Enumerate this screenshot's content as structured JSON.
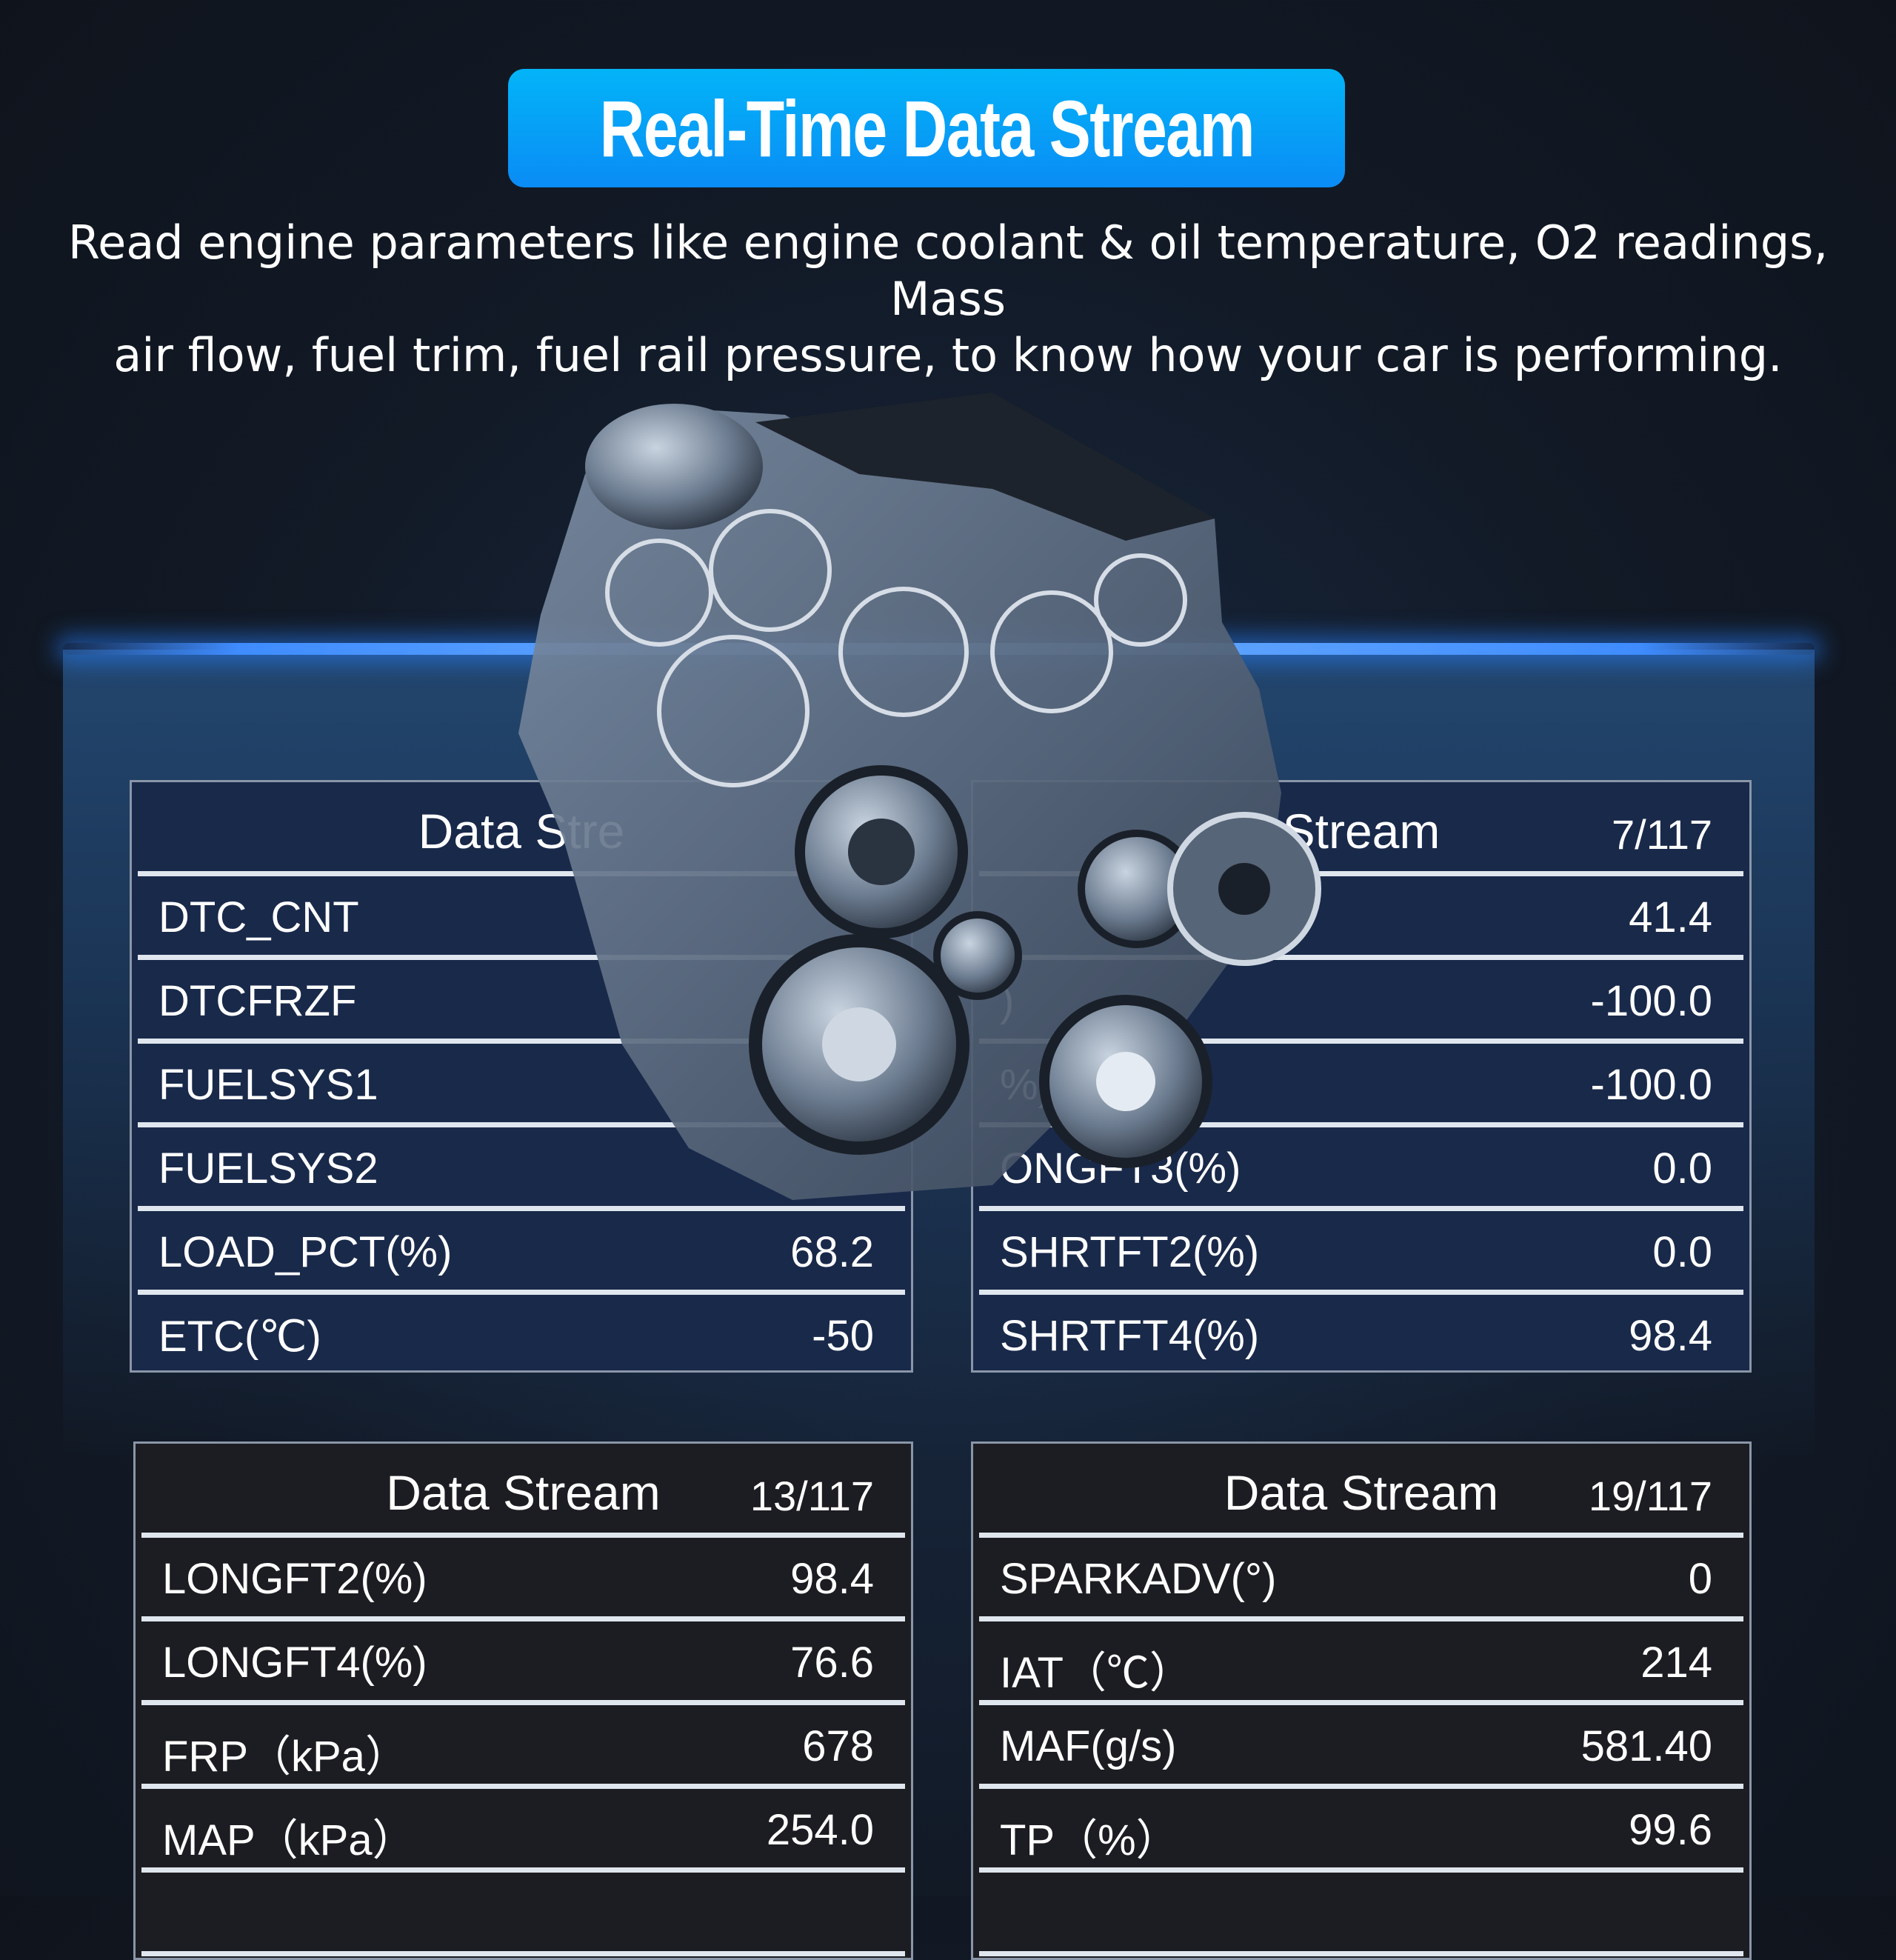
{
  "header": {
    "title": "Real-Time Data Stream",
    "subtitle_line1": "Read engine parameters like engine coolant & oil temperature, O2 readings, Mass",
    "subtitle_line2": "air flow, fuel trim, fuel rail pressure, to know how your car is performing."
  },
  "colors": {
    "badge": "#0a9cf6",
    "top_panel": "#19294a",
    "bottom_panel": "#1c1d22",
    "glow": "#4f9cff"
  },
  "images": {
    "engine": "engine-illustration"
  },
  "panels": [
    {
      "title": "Data Stre",
      "count": "",
      "rows": [
        {
          "label": "DTC_CNT",
          "value": ""
        },
        {
          "label": "DTCFRZF",
          "value": ""
        },
        {
          "label": "FUELSYS1",
          "value": ""
        },
        {
          "label": "FUELSYS2",
          "value": ""
        },
        {
          "label": "LOAD_PCT(%)",
          "value": "68.2"
        },
        {
          "label": "ETC(℃)",
          "value": "-50"
        }
      ]
    },
    {
      "title": "Stream",
      "count": "7/117",
      "rows": [
        {
          "label": "",
          "value": "41.4"
        },
        {
          "label": ")",
          "value": "-100.0"
        },
        {
          "label": "%)",
          "value": "-100.0"
        },
        {
          "label": "ONGFT3(%)",
          "value": "0.0"
        },
        {
          "label": "SHRTFT2(%)",
          "value": "0.0"
        },
        {
          "label": "SHRTFT4(%)",
          "value": "98.4"
        }
      ]
    },
    {
      "title": "Data Stream",
      "count": "13/117",
      "rows": [
        {
          "label": "LONGFT2(%)",
          "value": "98.4"
        },
        {
          "label": "LONGFT4(%)",
          "value": "76.6"
        },
        {
          "label": "FRP（kPa）",
          "value": "678"
        },
        {
          "label": "MAP（kPa）",
          "value": "254.0"
        },
        {
          "label": "",
          "value": ""
        }
      ]
    },
    {
      "title": "Data Stream",
      "count": "19/117",
      "rows": [
        {
          "label": "SPARKADV(°)",
          "value": "0"
        },
        {
          "label": "IAT（℃）",
          "value": "214"
        },
        {
          "label": "MAF(g/s)",
          "value": "581.40"
        },
        {
          "label": "TP（%）",
          "value": "99.6"
        },
        {
          "label": "",
          "value": ""
        }
      ]
    }
  ]
}
